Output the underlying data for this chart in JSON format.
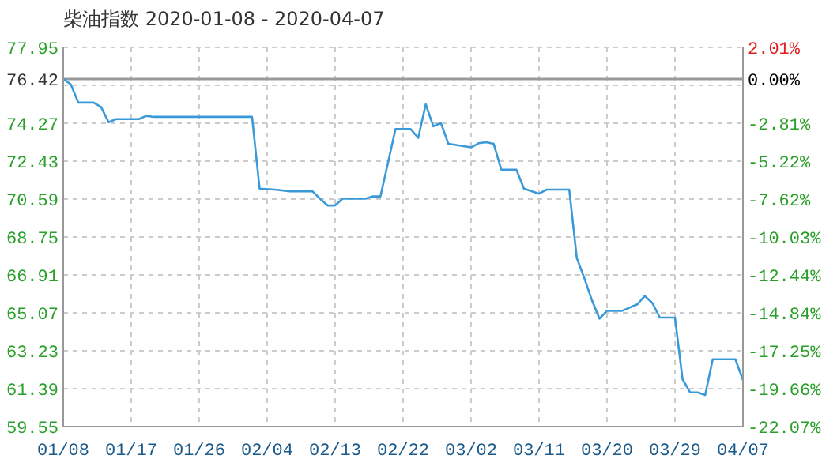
{
  "chart_data": {
    "type": "line",
    "title": "柴油指数 2020-01-08 - 2020-04-07",
    "x": [
      "2020-01-08",
      "2020-01-09",
      "2020-01-10",
      "2020-01-12",
      "2020-01-13",
      "2020-01-14",
      "2020-01-15",
      "2020-01-18",
      "2020-01-19",
      "2020-01-20",
      "2020-02-02",
      "2020-02-03",
      "2020-02-05",
      "2020-02-07",
      "2020-02-10",
      "2020-02-11",
      "2020-02-12",
      "2020-02-13",
      "2020-02-14",
      "2020-02-17",
      "2020-02-18",
      "2020-02-19",
      "2020-02-20",
      "2020-02-21",
      "2020-02-23",
      "2020-02-24",
      "2020-02-25",
      "2020-02-26",
      "2020-02-27",
      "2020-02-28",
      "2020-03-02",
      "2020-03-03",
      "2020-03-04",
      "2020-03-05",
      "2020-03-06",
      "2020-03-08",
      "2020-03-09",
      "2020-03-11",
      "2020-03-12",
      "2020-03-15",
      "2020-03-16",
      "2020-03-17",
      "2020-03-18",
      "2020-03-19",
      "2020-03-20",
      "2020-03-22",
      "2020-03-24",
      "2020-03-25",
      "2020-03-26",
      "2020-03-27",
      "2020-03-29",
      "2020-03-30",
      "2020-03-31",
      "2020-04-01",
      "2020-04-02",
      "2020-04-03",
      "2020-04-06",
      "2020-04-07"
    ],
    "series": [
      {
        "color": "#3a9ad9",
        "values": [
          76.42,
          76.16,
          75.27,
          75.27,
          75.06,
          74.32,
          74.47,
          74.47,
          74.63,
          74.58,
          74.58,
          71.1,
          71.05,
          70.97,
          70.97,
          70.61,
          70.28,
          70.28,
          70.61,
          70.61,
          70.72,
          70.72,
          72.35,
          73.99,
          73.99,
          73.56,
          75.19,
          74.12,
          74.29,
          73.27,
          73.1,
          73.3,
          73.35,
          73.27,
          72.02,
          72.02,
          71.1,
          70.85,
          71.05,
          71.05,
          67.73,
          66.75,
          65.68,
          64.79,
          65.17,
          65.17,
          65.48,
          65.89,
          65.55,
          64.84,
          64.84,
          61.85,
          61.21,
          61.21,
          61.08,
          62.82,
          62.82,
          61.8
        ]
      }
    ],
    "xlim": [
      "2020-01-08",
      "2020-04-07"
    ],
    "xticks": [
      {
        "value": "2020-01-08",
        "label": "01/08"
      },
      {
        "value": "2020-01-17",
        "label": "01/17"
      },
      {
        "value": "2020-01-26",
        "label": "01/26"
      },
      {
        "value": "2020-02-04",
        "label": "02/04"
      },
      {
        "value": "2020-02-13",
        "label": "02/13"
      },
      {
        "value": "2020-02-22",
        "label": "02/22"
      },
      {
        "value": "2020-03-02",
        "label": "03/02"
      },
      {
        "value": "2020-03-11",
        "label": "03/11"
      },
      {
        "value": "2020-03-20",
        "label": "03/20"
      },
      {
        "value": "2020-03-29",
        "label": "03/29"
      },
      {
        "value": "2020-04-07",
        "label": "04/07"
      }
    ],
    "ylim": [
      59.55,
      77.95
    ],
    "yticks": [
      59.55,
      61.39,
      63.23,
      65.07,
      66.91,
      68.75,
      70.59,
      72.43,
      74.27,
      {
        "value": 76.11,
        "label": null
      },
      77.95
    ],
    "y2lim": [
      -22.07,
      2.01
    ],
    "y2ticks": [
      {
        "value": -22.07,
        "label": "-22.07%"
      },
      {
        "value": -19.66,
        "label": "-19.66%"
      },
      {
        "value": -17.25,
        "label": "-17.25%"
      },
      {
        "value": -14.84,
        "label": "-14.84%"
      },
      {
        "value": -12.44,
        "label": "-12.44%"
      },
      {
        "value": -10.03,
        "label": "-10.03%"
      },
      {
        "value": -7.62,
        "label": "-7.62%"
      },
      {
        "value": -5.22,
        "label": "-5.22%"
      },
      {
        "value": -2.81,
        "label": "-2.81%"
      },
      {
        "value": 0,
        "label": "0.00%"
      },
      {
        "value": 2.01,
        "label": "2.01%"
      }
    ],
    "ref_lines": [
      {
        "axis": "y",
        "value": 76.42,
        "label": "76.42",
        "color": "#999999"
      }
    ],
    "grid": true
  }
}
